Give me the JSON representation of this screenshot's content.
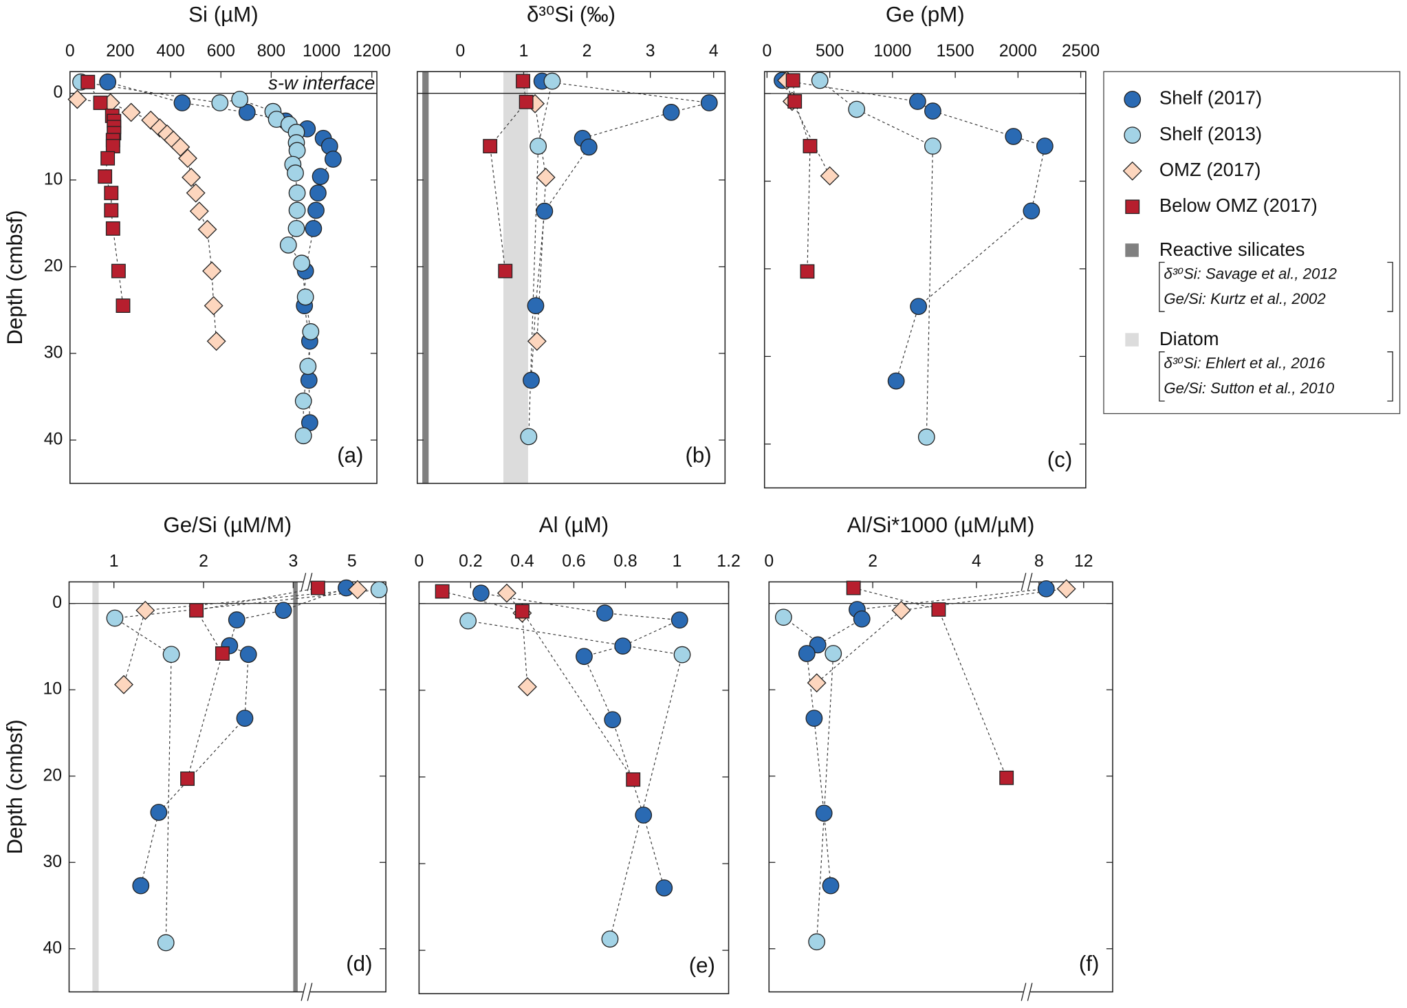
{
  "chart_data": [
    {
      "type": "scatter",
      "title": "Si (µM)",
      "panel_label": "(a)",
      "annotation": "s-w interface",
      "ylabel": "Depth (cmbsf)",
      "xlim": [
        0,
        1220
      ],
      "xticks": [
        0,
        200,
        400,
        600,
        800,
        1000,
        1200
      ],
      "ylim": [
        -2.5,
        45
      ],
      "yticks": [
        0,
        10,
        20,
        30,
        40
      ],
      "ytick_labels": true,
      "interface_depth": 0,
      "series": [
        {
          "name": "Shelf (2017)",
          "color": "#2a6ab3",
          "marker": "circle",
          "x": [
            150,
            446,
            704,
            857,
            943,
            1007,
            1032,
            1046,
            996,
            986,
            978,
            968,
            936,
            932,
            953,
            950,
            953
          ],
          "y": [
            -1.3,
            1.1,
            2.2,
            3.2,
            4.1,
            5.2,
            6.1,
            7.6,
            9.6,
            11.5,
            13.5,
            15.6,
            20.5,
            24.5,
            28.6,
            33.1,
            38
          ]
        },
        {
          "name": "Shelf (2013)",
          "color": "#a3d3e6",
          "marker": "circle",
          "x": [
            43,
            596,
            675,
            807,
            821,
            871,
            900,
            900,
            903,
            886,
            896,
            903,
            903,
            900,
            868,
            921,
            936,
            957,
            946,
            928,
            928
          ],
          "y": [
            -1.3,
            1.1,
            0.7,
            2.1,
            3,
            3.6,
            4.5,
            5.7,
            6.6,
            8.2,
            9.2,
            11.5,
            13.5,
            15.6,
            17.5,
            19.6,
            23.5,
            27.5,
            31.5,
            35.5,
            39.5
          ]
        },
        {
          "name": "OMZ (2017)",
          "color": "#fdd6be",
          "marker": "diamond",
          "x": [
            29,
            161,
            243,
            321,
            357,
            386,
            411,
            439,
            468,
            482,
            500,
            514,
            546,
            564,
            571,
            582
          ],
          "y": [
            0.7,
            1.1,
            2.2,
            3.1,
            4,
            4.7,
            5.4,
            6.2,
            7.5,
            9.7,
            11.5,
            13.6,
            15.7,
            20.5,
            24.5,
            28.6
          ]
        },
        {
          "name": "Below OMZ (2017)",
          "color": "#b71f2e",
          "marker": "square",
          "x": [
            71,
            121,
            168,
            175,
            175,
            175,
            171,
            171,
            150,
            139,
            164,
            164,
            171,
            193,
            211
          ],
          "y": [
            -1.3,
            1.1,
            2.6,
            3.2,
            3.9,
            4.6,
            5.4,
            6.1,
            7.5,
            9.6,
            11.5,
            13.5,
            15.6,
            20.5,
            24.5
          ]
        }
      ]
    },
    {
      "type": "scatter",
      "title": "δ³⁰Si (‰)",
      "panel_label": "(b)",
      "xlim": [
        -0.68,
        4.18
      ],
      "xticks": [
        0,
        1,
        2,
        3,
        4
      ],
      "ylim": [
        -2.5,
        45
      ],
      "yticks": [
        0,
        10,
        20,
        30,
        40
      ],
      "ytick_labels": false,
      "interface_depth": 0,
      "bands": [
        {
          "name": "Reactive silicates",
          "color": "#808080",
          "range": [
            -0.6,
            -0.5
          ],
          "refs": [
            "δ³⁰Si: Savage et al., 2012",
            "Ge/Si: Kurtz et al., 2002"
          ]
        },
        {
          "name": "Diatom",
          "color": "#dcdcdc",
          "range": [
            0.68,
            1.07
          ],
          "refs": [
            "δ³⁰Si: Ehlert et al., 2016",
            "Ge/Si: Sutton et al., 2010"
          ]
        }
      ],
      "series": [
        {
          "color": "#2a6ab3",
          "marker": "circle",
          "x": [
            1.29,
            3.93,
            3.33,
            1.93,
            2.03,
            1.33,
            1.19,
            1.12
          ],
          "y": [
            -1.4,
            1.1,
            2.2,
            5.2,
            6.2,
            13.6,
            24.5,
            33.1
          ]
        },
        {
          "color": "#a3d3e6",
          "marker": "circle",
          "x": [
            1.45,
            1.23,
            1.08
          ],
          "y": [
            -1.4,
            6.1,
            39.6
          ]
        },
        {
          "color": "#fdd6be",
          "marker": "diamond",
          "x": [
            1.18,
            1.35,
            1.21
          ],
          "y": [
            1.2,
            9.7,
            28.6
          ]
        },
        {
          "color": "#b71f2e",
          "marker": "square",
          "x": [
            0.99,
            1.04,
            0.47,
            0.71
          ],
          "y": [
            -1.4,
            1,
            6.1,
            20.5
          ]
        }
      ]
    },
    {
      "type": "scatter",
      "title": "Ge (pM)",
      "panel_label": "(c)",
      "xlim": [
        -20,
        2540
      ],
      "xticks": [
        0,
        500,
        1000,
        1500,
        2000,
        2500
      ],
      "ylim": [
        -2.5,
        45
      ],
      "yticks": [
        0,
        10,
        20,
        30,
        40
      ],
      "ytick_labels": false,
      "interface_depth": 0,
      "series": [
        {
          "color": "#2a6ab3",
          "marker": "circle",
          "x": [
            121,
            1200,
            1321,
            1964,
            2214,
            2107,
            1207,
            1029
          ],
          "y": [
            -1.5,
            0.9,
            2,
            4.9,
            6,
            13.4,
            24.3,
            32.8
          ]
        },
        {
          "color": "#a3d3e6",
          "marker": "circle",
          "x": [
            421,
            714,
            1321,
            1271
          ],
          "y": [
            -1.5,
            1.8,
            6,
            39.2
          ]
        },
        {
          "color": "#fdd6be",
          "marker": "diamond",
          "x": [
            157,
            200,
            500
          ],
          "y": [
            -1.5,
            0.9,
            9.4
          ]
        },
        {
          "color": "#b71f2e",
          "marker": "square",
          "x": [
            207,
            221,
            343,
            321
          ],
          "y": [
            -1.5,
            0.9,
            6,
            20.3
          ]
        }
      ]
    },
    {
      "type": "scatter",
      "title": "Ge/Si (µM/M)",
      "panel_label": "(d)",
      "ylabel": "Depth (cmbsf)",
      "xlim": [
        0.5,
        5.3
      ],
      "xbreak": [
        3.15,
        4.6
      ],
      "xticks": [
        1,
        2,
        3,
        5
      ],
      "ylim": [
        -2.5,
        45
      ],
      "yticks": [
        0,
        10,
        20,
        30,
        40
      ],
      "ytick_labels": true,
      "interface_depth": 0,
      "bands": [
        {
          "color": "#dcdcdc",
          "range": [
            0.76,
            0.83
          ]
        },
        {
          "color": "#808080",
          "range": [
            3.0,
            3.05
          ]
        }
      ],
      "series": [
        {
          "color": "#2a6ab3",
          "marker": "circle",
          "x": [
            4.95,
            2.89,
            2.37,
            2.29,
            2.5,
            2.46,
            1.5,
            1.3
          ],
          "y": [
            -1.8,
            0.8,
            1.9,
            4.9,
            5.9,
            13.3,
            24.2,
            32.7
          ]
        },
        {
          "color": "#a3d3e6",
          "marker": "circle",
          "x": [
            5.24,
            1.01,
            1.64,
            1.58
          ],
          "y": [
            -1.6,
            1.7,
            5.9,
            39.3
          ]
        },
        {
          "color": "#fdd6be",
          "marker": "diamond",
          "x": [
            5.05,
            1.35,
            1.11
          ],
          "y": [
            -1.6,
            0.8,
            9.4
          ]
        },
        {
          "color": "#b71f2e",
          "marker": "square",
          "x": [
            4.7,
            1.92,
            2.21,
            1.82
          ],
          "y": [
            -1.8,
            0.8,
            5.8,
            20.3
          ]
        }
      ]
    },
    {
      "type": "scatter",
      "title": "Al (µM)",
      "panel_label": "(e)",
      "xlim": [
        0,
        1.2
      ],
      "xticks": [
        0,
        0.2,
        0.4,
        0.6,
        0.8,
        1,
        1.2
      ],
      "ylim": [
        -2.5,
        45
      ],
      "yticks": [
        0,
        10,
        20,
        30,
        40
      ],
      "ytick_labels": false,
      "interface_depth": 0,
      "series": [
        {
          "color": "#2a6ab3",
          "marker": "circle",
          "x": [
            0.24,
            0.72,
            1.01,
            0.79,
            0.64,
            0.75,
            0.87,
            0.95
          ],
          "y": [
            -1.2,
            1.1,
            1.9,
            4.9,
            6.1,
            13.4,
            24.4,
            32.8
          ]
        },
        {
          "color": "#a3d3e6",
          "marker": "circle",
          "x": [
            0.19,
            1.02,
            0.74
          ],
          "y": [
            2,
            5.9,
            38.7
          ]
        },
        {
          "color": "#fdd6be",
          "marker": "diamond",
          "x": [
            0.34,
            0.4,
            0.42
          ],
          "y": [
            -1.2,
            1.1,
            9.6
          ]
        },
        {
          "color": "#b71f2e",
          "marker": "square",
          "x": [
            0.09,
            0.4,
            0.83
          ],
          "y": [
            -1.4,
            0.9,
            20.3
          ]
        }
      ]
    },
    {
      "type": "scatter",
      "title": "Al/Si*1000 (µM/µM)",
      "panel_label": "(f)",
      "xlim": [
        0,
        14.6
      ],
      "xbreak": [
        4.97,
        6.9
      ],
      "xticks": [
        0,
        2,
        4,
        8,
        12
      ],
      "ylim": [
        -2.5,
        45
      ],
      "yticks": [
        0,
        10,
        20,
        30,
        40
      ],
      "ytick_labels": false,
      "interface_depth": 0,
      "series": [
        {
          "color": "#2a6ab3",
          "marker": "circle",
          "x": [
            8.64,
            1.7,
            1.79,
            0.94,
            0.73,
            0.87,
            1.06,
            1.19
          ],
          "y": [
            -1.7,
            0.7,
            1.8,
            4.8,
            5.8,
            13.3,
            24.3,
            32.7
          ]
        },
        {
          "color": "#a3d3e6",
          "marker": "circle",
          "x": [
            0.28,
            1.24,
            0.92
          ],
          "y": [
            1.6,
            5.8,
            39.2
          ]
        },
        {
          "color": "#fdd6be",
          "marker": "diamond",
          "x": [
            10.45,
            2.55,
            0.92
          ],
          "y": [
            -1.7,
            0.8,
            9.2
          ]
        },
        {
          "color": "#b71f2e",
          "marker": "square",
          "x": [
            1.63,
            3.27,
            4.58
          ],
          "y": [
            -1.8,
            0.7,
            20.2
          ]
        }
      ]
    }
  ]
}
